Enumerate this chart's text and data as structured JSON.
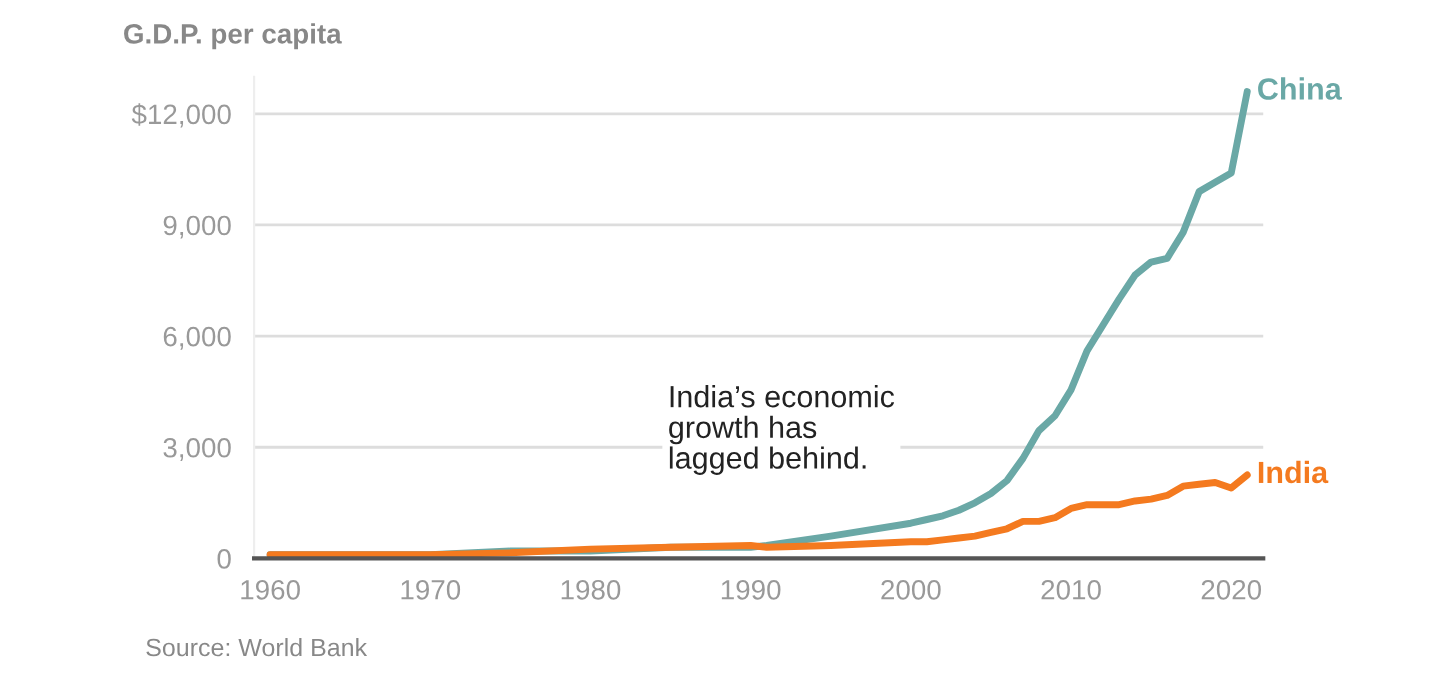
{
  "chart_data": {
    "type": "line",
    "title": "G.D.P. per capita",
    "x": [
      1960,
      1965,
      1970,
      1975,
      1980,
      1985,
      1990,
      1991,
      1995,
      2000,
      2001,
      2002,
      2003,
      2004,
      2005,
      2006,
      2007,
      2008,
      2009,
      2010,
      2011,
      2012,
      2013,
      2014,
      2015,
      2016,
      2017,
      2018,
      2019,
      2020,
      2021
    ],
    "series": [
      {
        "name": "China",
        "color": "#6aa8a6",
        "values": [
          100,
          100,
          100,
          200,
          200,
          300,
          300,
          350,
          600,
          950,
          1050,
          1150,
          1300,
          1500,
          1750,
          2100,
          2700,
          3450,
          3850,
          4550,
          5600,
          6300,
          7000,
          7650,
          8000,
          8100,
          8800,
          9900,
          10150,
          10400,
          12600
        ]
      },
      {
        "name": "India",
        "color": "#f47a1f",
        "values": [
          100,
          100,
          100,
          150,
          250,
          300,
          350,
          300,
          350,
          450,
          450,
          500,
          550,
          600,
          700,
          800,
          1000,
          1000,
          1100,
          1350,
          1450,
          1450,
          1450,
          1550,
          1600,
          1700,
          1950,
          2000,
          2050,
          1900,
          2250
        ]
      }
    ],
    "xlim": [
      1959,
      2022
    ],
    "ylim": [
      0,
      13000
    ],
    "xticks": [
      1960,
      1970,
      1980,
      1990,
      2000,
      2010,
      2020
    ],
    "yticks": [
      0,
      {
        "value": 3000,
        "label": "3,000"
      },
      {
        "value": 6000,
        "label": "6,000"
      },
      {
        "value": 9000,
        "label": "9,000"
      },
      {
        "value": 12000,
        "label": "$12,000"
      }
    ],
    "grid": "y",
    "legend": false,
    "annotations": [
      "India’s economic\ngrowth has\nlagged behind.",
      "Source: World Bank"
    ]
  }
}
